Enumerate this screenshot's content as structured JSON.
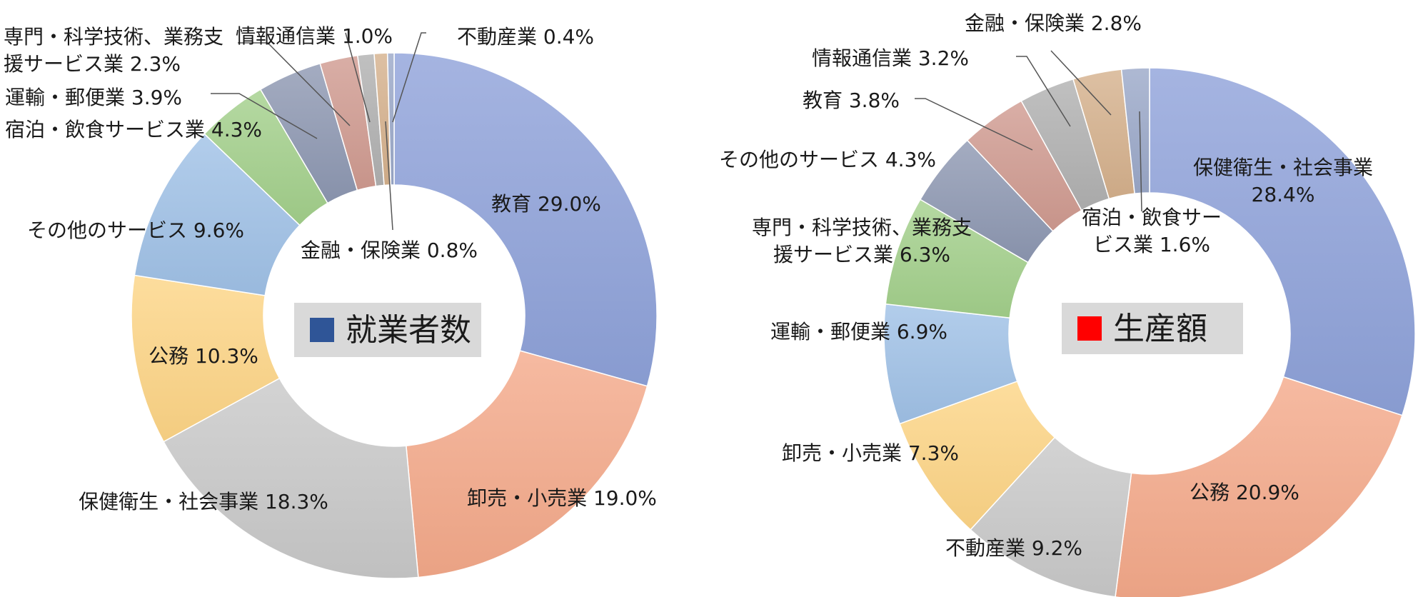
{
  "chart_data": [
    {
      "type": "pie",
      "donut": true,
      "title": "就業者数",
      "title_marker_color": "#2f5597",
      "legend": "none",
      "unit": "%",
      "slices": [
        {
          "label": "教育",
          "value": 29.0,
          "display": "教育 29.0%",
          "color": "#8ea1d9"
        },
        {
          "label": "卸売・小売業",
          "value": 19.0,
          "display": "卸売・小売業  19.0%",
          "color": "#f4a98a"
        },
        {
          "label": "保健衛生・社会事業",
          "value": 18.3,
          "display": "保健衛生・社会事業 18.3%",
          "color": "#c8c8c8"
        },
        {
          "label": "公務",
          "value": 10.3,
          "display": "公務 10.3%",
          "color": "#fdd585"
        },
        {
          "label": "その他のサービス",
          "value": 9.6,
          "display": "その他のサービス 9.6%",
          "color": "#9fc1e6"
        },
        {
          "label": "宿泊・飲食サービス業",
          "value": 4.3,
          "display": "宿泊・飲食サービス業 4.3%",
          "color": "#a3cf8b"
        },
        {
          "label": "運輸・郵便業",
          "value": 3.9,
          "display": "運輸・郵便業 3.9%",
          "color": "#8d97b1"
        },
        {
          "label": "専門・科学技術、業務支援サービス業",
          "value": 2.3,
          "display": [
            "専門・科学技術、業務支",
            "援サービス業 2.3%"
          ],
          "color": "#cf9a90"
        },
        {
          "label": "情報通信業",
          "value": 1.0,
          "display": "情報通信業 1.0%",
          "color": "#b0b0b0"
        },
        {
          "label": "金融・保険業",
          "value": 0.8,
          "display": "金融・保険業 0.8%",
          "color": "#d4b08c"
        },
        {
          "label": "不動産業",
          "value": 0.4,
          "display": "不動産業 0.4%",
          "color": "#9aa8c8"
        }
      ]
    },
    {
      "type": "pie",
      "donut": true,
      "title": "生産額",
      "title_marker_color": "#ff0000",
      "legend": "none",
      "unit": "%",
      "slices": [
        {
          "label": "保健衛生・社会事業",
          "value": 28.4,
          "display": [
            "保健衛生・社会事業",
            "28.4%"
          ],
          "color": "#8ea1d9"
        },
        {
          "label": "公務",
          "value": 20.9,
          "display": "公務 20.9%",
          "color": "#f4a98a"
        },
        {
          "label": "不動産業",
          "value": 9.2,
          "display": "不動産業 9.2%",
          "color": "#c8c8c8"
        },
        {
          "label": "卸売・小売業",
          "value": 7.3,
          "display": "卸売・小売業 7.3%",
          "color": "#fdd585"
        },
        {
          "label": "運輸・郵便業",
          "value": 6.9,
          "display": "運輸・郵便業 6.9%",
          "color": "#9fc1e6"
        },
        {
          "label": "専門・科学技術、業務支援サービス業",
          "value": 6.3,
          "display": [
            "専門・科学技術、業務支",
            "援サービス業 6.3%"
          ],
          "color": "#a3cf8b"
        },
        {
          "label": "その他のサービス",
          "value": 4.3,
          "display": "その他のサービス 4.3%",
          "color": "#8d97b1"
        },
        {
          "label": "教育",
          "value": 3.8,
          "display": "教育 3.8%",
          "color": "#cf9a90"
        },
        {
          "label": "情報通信業",
          "value": 3.2,
          "display": "情報通信業 3.2%",
          "color": "#b0b0b0"
        },
        {
          "label": "金融・保険業",
          "value": 2.8,
          "display": "金融・保険業 2.8%",
          "color": "#d4b08c"
        },
        {
          "label": "宿泊・飲食サービス業",
          "value": 1.6,
          "display": [
            "宿泊・飲食サー",
            "ビス業 1.6%"
          ],
          "color": "#9aa8c8"
        }
      ]
    }
  ]
}
